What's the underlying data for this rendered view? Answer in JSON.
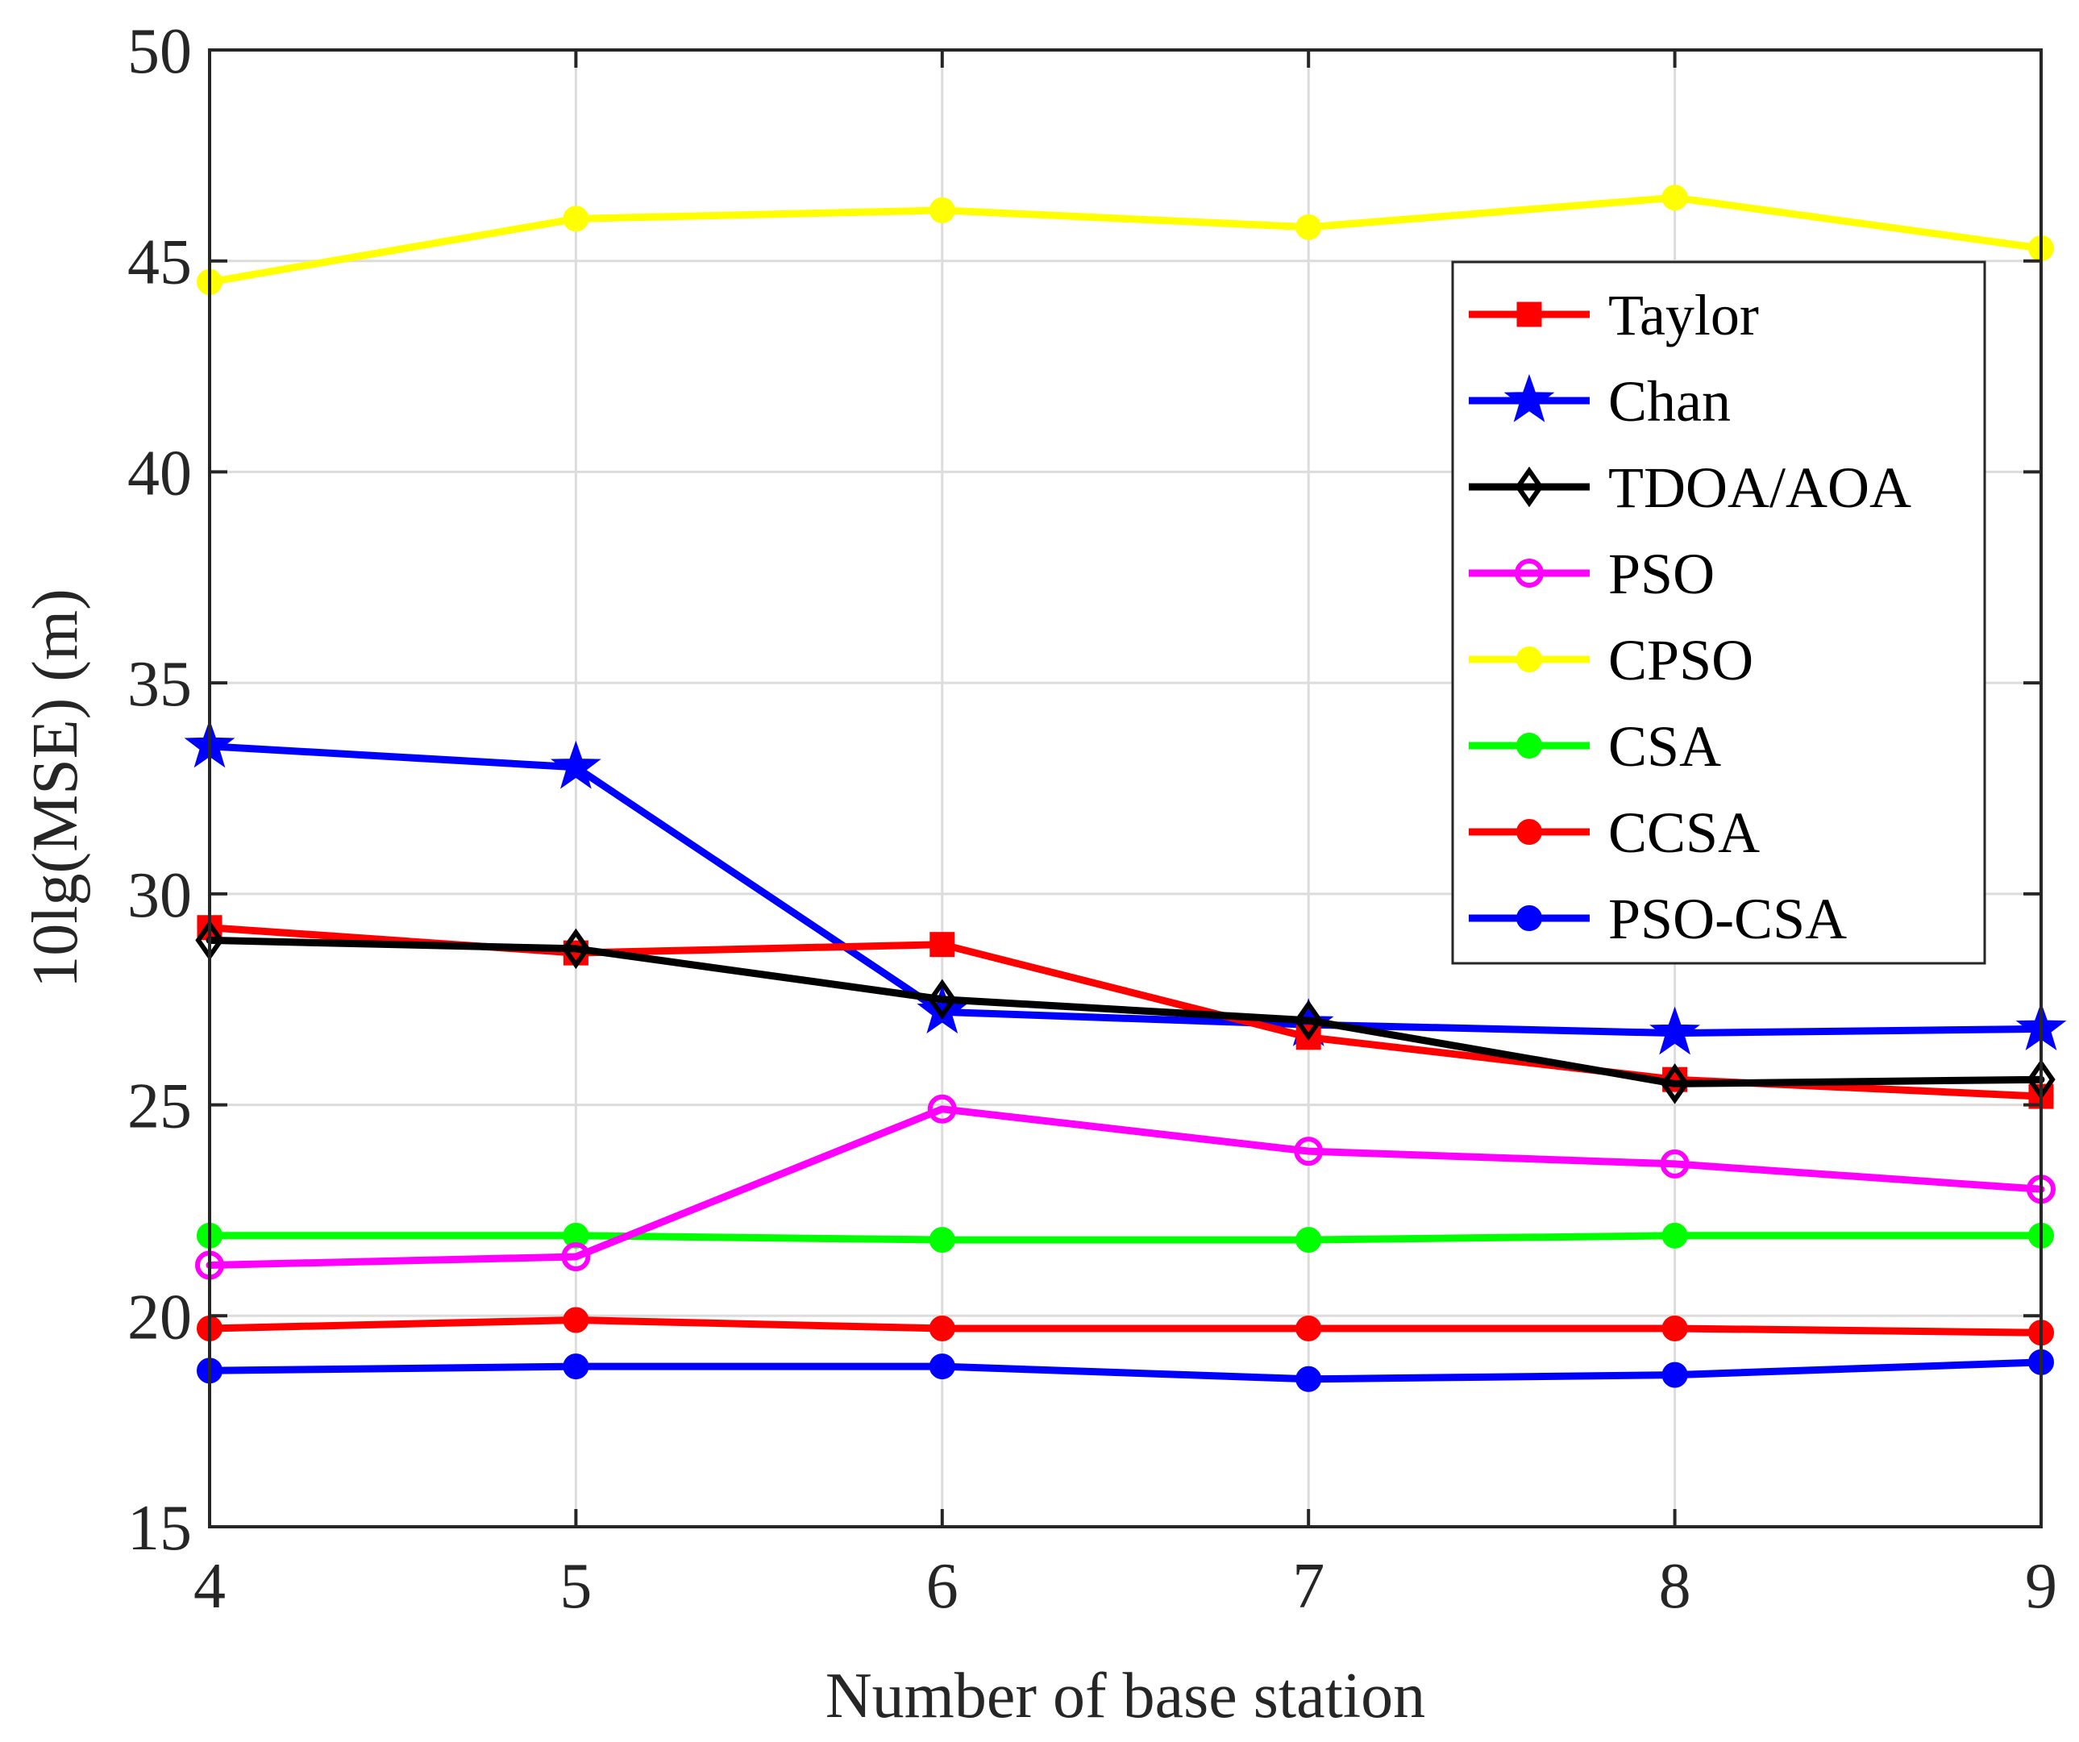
{
  "chart_data": {
    "type": "line",
    "title": "",
    "xlabel": "Number of base station",
    "ylabel": "10lg(MSE) (m)",
    "xlim": [
      4,
      9
    ],
    "ylim": [
      15,
      50
    ],
    "x": [
      4,
      5,
      6,
      7,
      8,
      9
    ],
    "xticks": [
      "4",
      "5",
      "6",
      "7",
      "8",
      "9"
    ],
    "yticks": [
      "15",
      "20",
      "25",
      "30",
      "35",
      "40",
      "45",
      "50"
    ],
    "grid": true,
    "legend_position": "top-right",
    "series": [
      {
        "name": "Taylor",
        "color": "#ff0000",
        "marker": "square",
        "values": [
          29.2,
          28.6,
          28.8,
          26.6,
          25.6,
          25.2
        ]
      },
      {
        "name": "Chan",
        "color": "#0000ff",
        "marker": "star",
        "values": [
          33.5,
          33.0,
          27.2,
          26.9,
          26.7,
          26.8
        ]
      },
      {
        "name": "TDOA/AOA",
        "color": "#000000",
        "marker": "diamond",
        "values": [
          28.9,
          28.7,
          27.5,
          27.0,
          25.5,
          25.6
        ]
      },
      {
        "name": "PSO",
        "color": "#ff00ff",
        "marker": "circle-open",
        "values": [
          21.2,
          21.4,
          24.9,
          23.9,
          23.6,
          23.0
        ]
      },
      {
        "name": "CPSO",
        "color": "#ffff00",
        "marker": "circle",
        "values": [
          44.5,
          46.0,
          46.2,
          45.8,
          46.5,
          45.3
        ]
      },
      {
        "name": "CSA",
        "color": "#00ff00",
        "marker": "circle",
        "values": [
          21.9,
          21.9,
          21.8,
          21.8,
          21.9,
          21.9
        ]
      },
      {
        "name": "CCSA",
        "color": "#ff0000",
        "marker": "circle",
        "values": [
          19.7,
          19.9,
          19.7,
          19.7,
          19.7,
          19.6
        ]
      },
      {
        "name": "PSO-CSA",
        "color": "#0000ff",
        "marker": "circle",
        "values": [
          18.7,
          18.8,
          18.8,
          18.5,
          18.6,
          18.9
        ]
      }
    ]
  }
}
